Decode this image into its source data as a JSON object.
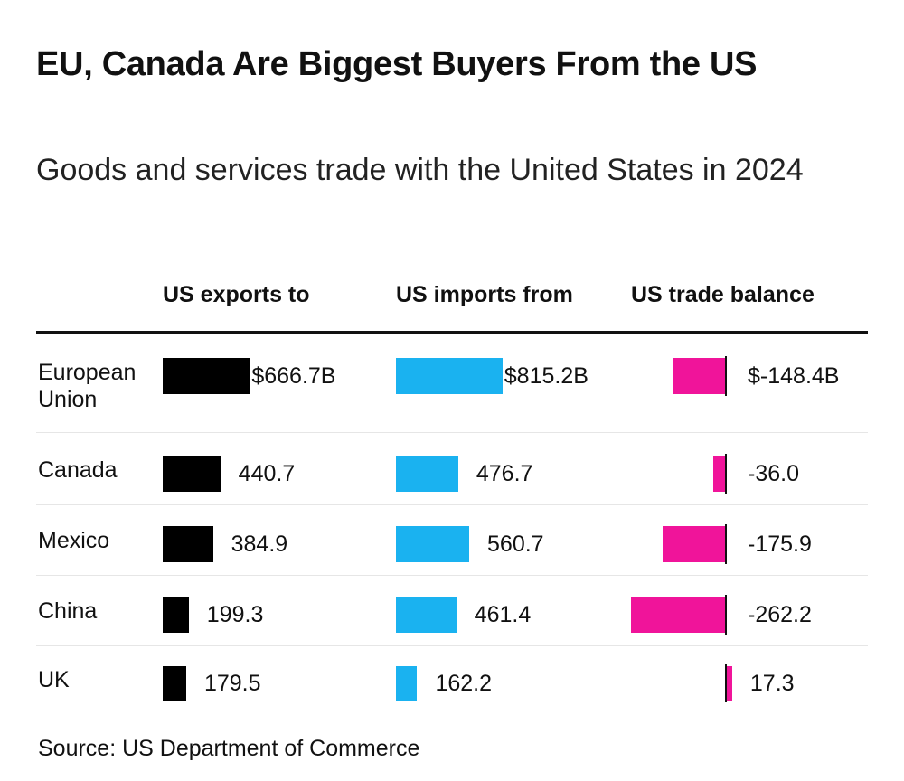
{
  "title": "EU, Canada Are Biggest Buyers From the US",
  "subtitle": "Goods and services trade with the United States in 2024",
  "source": "Source: US Department of Commerce",
  "colors": {
    "exports": "#000000",
    "imports": "#1ab2f0",
    "balance": "#f0149a"
  },
  "chart_data": {
    "type": "bar",
    "columns": [
      "US exports to",
      "US imports from",
      "US trade balance"
    ],
    "categories": [
      "European Union",
      "Canada",
      "Mexico",
      "China",
      "UK"
    ],
    "series": [
      {
        "name": "US exports to",
        "values": [
          666.7,
          440.7,
          384.9,
          199.3,
          179.5
        ],
        "labels": [
          "$666.7B",
          "440.7",
          "384.9",
          "199.3",
          "179.5"
        ]
      },
      {
        "name": "US imports from",
        "values": [
          815.2,
          476.7,
          560.7,
          461.4,
          162.2
        ],
        "labels": [
          "$815.2B",
          "476.7",
          "560.7",
          "461.4",
          "162.2"
        ]
      },
      {
        "name": "US trade balance",
        "values": [
          -148.4,
          -36.0,
          -175.9,
          -262.2,
          17.3
        ],
        "labels": [
          "$-148.4B",
          "-36.0",
          "-175.9",
          "-262.2",
          "17.3"
        ]
      }
    ]
  }
}
